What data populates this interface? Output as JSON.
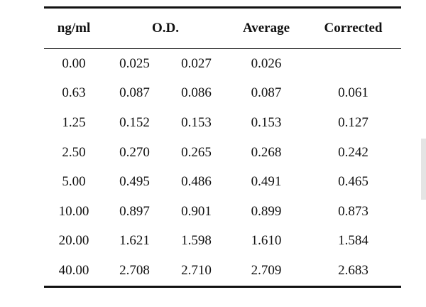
{
  "table": {
    "headers": {
      "concentration": "ng/ml",
      "od": "O.D.",
      "average": "Average",
      "corrected": "Corrected"
    },
    "rows": [
      {
        "conc": "0.00",
        "od1": "0.025",
        "od2": "0.027",
        "avg": "0.026",
        "corr": ""
      },
      {
        "conc": "0.63",
        "od1": "0.087",
        "od2": "0.086",
        "avg": "0.087",
        "corr": "0.061"
      },
      {
        "conc": "1.25",
        "od1": "0.152",
        "od2": "0.153",
        "avg": "0.153",
        "corr": "0.127"
      },
      {
        "conc": "2.50",
        "od1": "0.270",
        "od2": "0.265",
        "avg": "0.268",
        "corr": "0.242"
      },
      {
        "conc": "5.00",
        "od1": "0.495",
        "od2": "0.486",
        "avg": "0.491",
        "corr": "0.465"
      },
      {
        "conc": "10.00",
        "od1": "0.897",
        "od2": "0.901",
        "avg": "0.899",
        "corr": "0.873"
      },
      {
        "conc": "20.00",
        "od1": "1.621",
        "od2": "1.598",
        "avg": "1.610",
        "corr": "1.584"
      },
      {
        "conc": "40.00",
        "od1": "2.708",
        "od2": "2.710",
        "avg": "2.709",
        "corr": "2.683"
      }
    ]
  }
}
